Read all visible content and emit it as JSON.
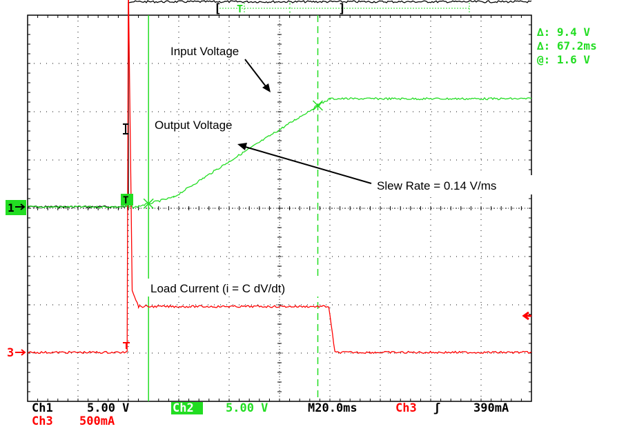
{
  "colors": {
    "ch1": "#000000",
    "ch2": "#22dd22",
    "ch3": "#ff0000",
    "cursor": "#22dd22",
    "grid": "#000000"
  },
  "chart_data": {
    "type": "line",
    "title": "",
    "xlabel": "",
    "ylabel": "",
    "grid": true,
    "divisions": {
      "x": 10,
      "y": 8
    },
    "timebase_per_div_ms": 20,
    "x_range_ms": [
      -200,
      0
    ],
    "series": [
      {
        "name": "Input Voltage",
        "channel": "Ch1",
        "color": "#000000",
        "x_ms": [
          -200,
          -160,
          -160,
          0
        ],
        "y_div": [
          0,
          0,
          4.25,
          4.25
        ]
      },
      {
        "name": "Output Voltage",
        "channel": "Ch2",
        "color": "#22dd22",
        "x_ms": [
          -200,
          -157,
          -142,
          -120,
          -100,
          -84.8,
          -80,
          0
        ],
        "y_div": [
          0,
          0,
          0.2,
          0.94,
          1.6,
          2.1,
          2.24,
          2.24
        ]
      },
      {
        "name": "Load Current (i = C dV/dt)",
        "channel": "Ch3",
        "color": "#ff0000",
        "x_ms": [
          -200,
          -160.5,
          -160,
          -158.5,
          -156,
          -120,
          -80.5,
          -78,
          0
        ],
        "y_div": [
          0,
          0,
          7.7,
          1.3,
          0.95,
          0.95,
          0.95,
          0,
          0
        ]
      }
    ],
    "annotations": [
      {
        "text": "Input Voltage"
      },
      {
        "text": "Output Voltage"
      },
      {
        "text": "Slew Rate = 0.14 V/ms"
      },
      {
        "text": "Load Current (i = C dV/dt)"
      }
    ],
    "cursors": {
      "v1_ms": -152,
      "v2_ms": -84.8
    }
  },
  "measurements": {
    "delta_v": "∆: 9.4 V",
    "delta_t": "∆: 67.2ms",
    "at": "@: 1.6 V"
  },
  "status": {
    "ch1_name": "Ch1",
    "ch1_scale": "5.00 V",
    "ch2_name": "Ch2",
    "ch2_scale": "5.00 V",
    "ch3_name": "Ch3",
    "ch3_scale": "500mA",
    "timebase": "M20.0ms",
    "trigger_source": "Ch3",
    "trigger_slope": "ʃ",
    "trigger_level": "390mA"
  },
  "markers": {
    "ch1": "1",
    "ch2": "T",
    "ch3": "3",
    "trigger_top": "T"
  }
}
